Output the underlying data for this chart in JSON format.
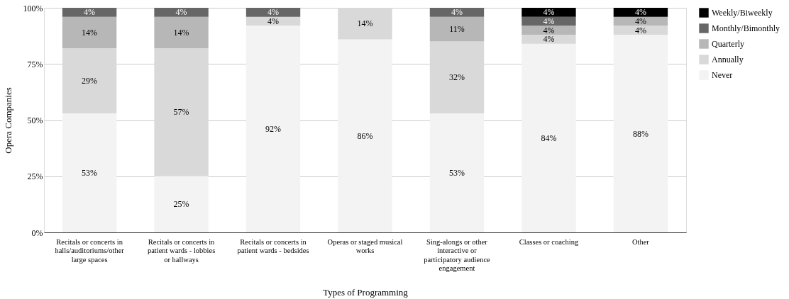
{
  "chart_data": {
    "type": "bar",
    "stacked": true,
    "xlabel": "Types of Programming",
    "ylabel": "Opera Companies",
    "categories": [
      "Recitals or concerts in halls/auditoriums/other large spaces",
      "Recitals or concerts in patient wards - lobbies or hallways",
      "Recitals or concerts in patient wards - bedsides",
      "Operas or staged musical works",
      "Sing-alongs or other interactive or participatory audience engagement",
      "Classes or coaching",
      "Other"
    ],
    "series": [
      {
        "name": "Never",
        "color": "#f3f3f3",
        "values": [
          53,
          25,
          92,
          86,
          53,
          84,
          88
        ],
        "value_labels": [
          "53%",
          "25%",
          "92%",
          "86%",
          "53%",
          "84%",
          "88%"
        ]
      },
      {
        "name": "Annually",
        "color": "#d9d9d9",
        "values": [
          29,
          57,
          4,
          14,
          32,
          4,
          4
        ],
        "value_labels": [
          "29%",
          "57%",
          "4%",
          "14%",
          "32%",
          "4%",
          "4%"
        ]
      },
      {
        "name": "Quarterly",
        "color": "#b7b7b7",
        "values": [
          14,
          14,
          null,
          null,
          11,
          4,
          4
        ],
        "value_labels": [
          "14%",
          "14%",
          null,
          null,
          "11%",
          "4%",
          "4%"
        ]
      },
      {
        "name": "Monthly/Bimonthly",
        "color": "#666666",
        "values": [
          4,
          4,
          4,
          null,
          4,
          4,
          null
        ],
        "value_labels": [
          "4%",
          "4%",
          "4%",
          null,
          "4%",
          "4%",
          null
        ]
      },
      {
        "name": "Weekly/Biweekly",
        "color": "#000000",
        "values": [
          null,
          null,
          null,
          null,
          null,
          4,
          4
        ],
        "value_labels": [
          null,
          null,
          null,
          null,
          null,
          "4%",
          "4%"
        ]
      }
    ],
    "ylim": [
      0,
      100
    ],
    "yticks": [
      {
        "value": 0,
        "label": "0%"
      },
      {
        "value": 25,
        "label": "25%"
      },
      {
        "value": 50,
        "label": "50%"
      },
      {
        "value": 75,
        "label": "75%"
      },
      {
        "value": 100,
        "label": "100%"
      }
    ],
    "grid": "y",
    "legend": "top right"
  }
}
